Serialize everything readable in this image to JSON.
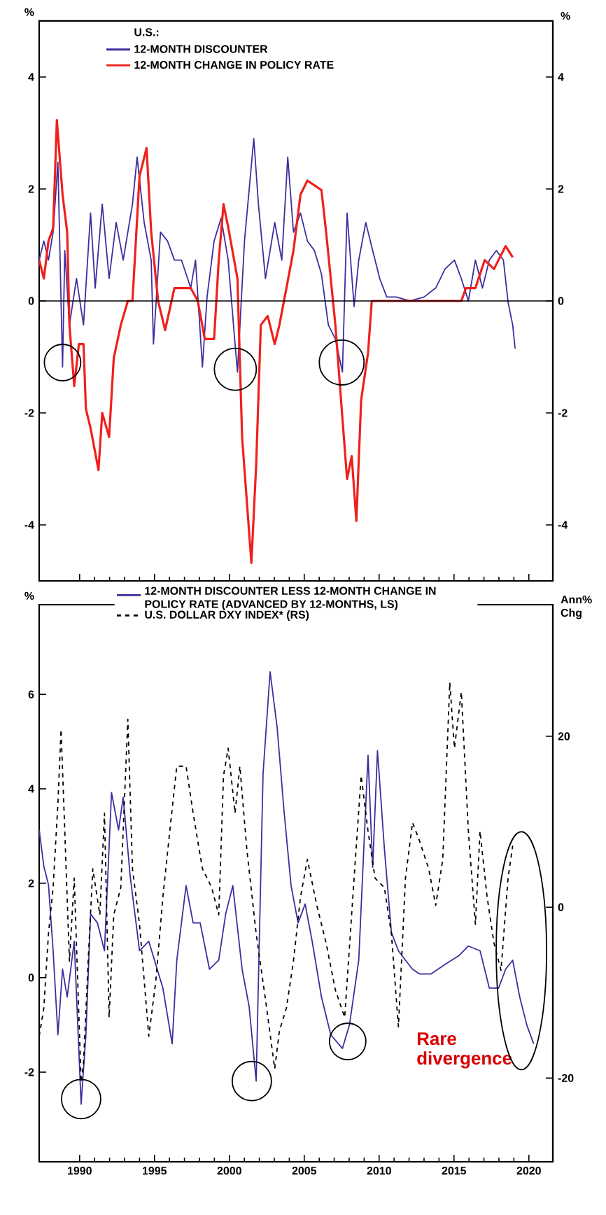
{
  "chart_data": [
    {
      "type": "line",
      "ylabel": "%",
      "y2label": "%",
      "legend_title": "U.S.:",
      "legend": "top",
      "marker": "none",
      "grid": false,
      "tick_labels": "y",
      "xlim": [
        1987.3,
        2021.6
      ],
      "xticks": [
        {
          "value": 1990,
          "label": null
        },
        {
          "value": 1995,
          "label": null
        },
        {
          "value": 2000,
          "label": null
        },
        {
          "value": 2005,
          "label": null
        },
        {
          "value": 2010,
          "label": null
        },
        {
          "value": 2015,
          "label": null
        },
        {
          "value": 2020,
          "label": null
        }
      ],
      "ylim": [
        -5,
        5
      ],
      "yticks": [
        -4,
        -2,
        0,
        2,
        4
      ],
      "y2lim": [
        -5,
        5
      ],
      "y2ticks": [
        -4,
        -2,
        0,
        2,
        4
      ],
      "ref_lines": [
        {
          "axis": "y",
          "value": 0,
          "color": "#000000"
        }
      ],
      "series": [
        {
          "name": "12-MONTH DISCOUNTER",
          "color": "#3b2f9e",
          "line_style": "solid",
          "x": [
            1987.3,
            1987.61,
            1987.92,
            1988.23,
            1988.55,
            1988.86,
            1989.01,
            1989.32,
            1989.79,
            1990.26,
            1990.73,
            1991.04,
            1991.51,
            1991.97,
            1992.44,
            1992.91,
            1993.53,
            1993.84,
            1994.31,
            1994.78,
            1994.93,
            1995.4,
            1995.87,
            1996.33,
            1996.8,
            1997.42,
            1997.74,
            1998.2,
            1998.51,
            1998.98,
            1999.45,
            1999.92,
            2000.38,
            2000.54,
            2001.01,
            2001.63,
            2001.94,
            2002.41,
            2003.03,
            2003.5,
            2003.9,
            2004.28,
            2004.75,
            2005.21,
            2005.68,
            2006.15,
            2006.61,
            2007.08,
            2007.55,
            2007.86,
            2008.33,
            2008.64,
            2009.11,
            2009.57,
            2010.04,
            2010.51,
            2011.13,
            2012.07,
            2013.0,
            2013.78,
            2014.4,
            2015.03,
            2015.49,
            2015.96,
            2016.43,
            2016.9,
            2017.36,
            2017.83,
            2018.3,
            2018.61,
            2018.92,
            2019.08
          ],
          "values": [
            0.73,
            1.07,
            0.73,
            1.23,
            2.48,
            -1.18,
            0.9,
            -0.43,
            0.4,
            -0.43,
            1.57,
            0.23,
            1.73,
            0.4,
            1.4,
            0.73,
            1.73,
            2.57,
            1.4,
            0.73,
            -0.77,
            1.23,
            1.07,
            0.73,
            0.73,
            0.23,
            0.73,
            -1.18,
            0.07,
            1.07,
            1.48,
            0.73,
            -0.77,
            -1.27,
            1.07,
            2.9,
            1.73,
            0.4,
            1.4,
            0.73,
            2.57,
            1.23,
            1.57,
            1.07,
            0.9,
            0.48,
            -0.43,
            -0.68,
            -1.27,
            1.57,
            -0.1,
            0.73,
            1.4,
            0.9,
            0.4,
            0.07,
            0.07,
            0,
            0.07,
            0.23,
            0.57,
            0.73,
            0.4,
            0,
            0.73,
            0.23,
            0.73,
            0.9,
            0.73,
            -0.02,
            -0.43,
            -0.85
          ]
        },
        {
          "name": "12-MONTH CHANGE IN POLICY RATE",
          "color": "#f0201c",
          "line_style": "solid",
          "x": [
            1987.3,
            1987.61,
            1987.92,
            1988.23,
            1988.48,
            1988.86,
            1989.17,
            1989.32,
            1989.64,
            1989.95,
            1990.26,
            1990.42,
            1990.73,
            1991.26,
            1991.51,
            1991.97,
            1992.28,
            1992.75,
            1993.22,
            1993.53,
            1994.0,
            1994.47,
            1994.78,
            1995.24,
            1995.71,
            1996.33,
            1997.42,
            1997.89,
            1998.36,
            1998.98,
            1999.29,
            1999.61,
            1999.92,
            2000.54,
            2000.85,
            2001.47,
            2001.79,
            2002.1,
            2002.56,
            2003.03,
            2003.34,
            2003.81,
            2004.28,
            2004.75,
            2005.21,
            2006.15,
            2006.46,
            2007.08,
            2007.55,
            2007.86,
            2008.17,
            2008.48,
            2008.8,
            2009.26,
            2009.51,
            2015.49,
            2015.8,
            2016.43,
            2017.05,
            2017.67,
            2018.45,
            2018.92
          ],
          "values": [
            0.73,
            0.4,
            1.07,
            1.3,
            3.23,
            1.9,
            1.23,
            -0.43,
            -1.52,
            -0.77,
            -0.77,
            -1.93,
            -2.27,
            -3.02,
            -2.0,
            -2.43,
            -1.02,
            -0.43,
            0,
            0,
            2.23,
            2.73,
            1.23,
            0,
            -0.52,
            0.23,
            0.23,
            0,
            -0.68,
            -0.68,
            0.73,
            1.73,
            1.32,
            0.4,
            -2.43,
            -4.68,
            -2.93,
            -0.43,
            -0.27,
            -0.77,
            -0.43,
            0.23,
            0.9,
            1.9,
            2.15,
            1.98,
            1.23,
            -0.43,
            -2.1,
            -3.18,
            -2.77,
            -3.93,
            -1.77,
            -0.93,
            0,
            0,
            0.23,
            0.23,
            0.73,
            0.57,
            0.98,
            0.78
          ]
        }
      ]
    },
    {
      "type": "line",
      "ylabel": "%",
      "y2label": "Ann% Chg",
      "legend": "top",
      "marker": "none",
      "grid": false,
      "xlim": [
        1987.3,
        2021.6
      ],
      "xticks": [
        1990,
        1995,
        2000,
        2005,
        2010,
        2015,
        2020
      ],
      "ylim": [
        -3.9,
        7.9
      ],
      "yticks": [
        -2,
        0,
        2,
        4,
        6
      ],
      "y2lim": [
        -29.8,
        35.4
      ],
      "y2ticks": [
        -20,
        0,
        20
      ],
      "annotations": [
        "Rare divergence"
      ],
      "series": [
        {
          "name": "12-MONTH DISCOUNTER LESS 12-MONTH CHANGE IN POLICY RATE (ADVANCED BY 12-MONTHS, LS)",
          "color": "#3b2f9e",
          "line_style": "solid",
          "x": [
            1987.3,
            1987.61,
            1987.92,
            1988.23,
            1988.55,
            1988.86,
            1989.17,
            1989.64,
            1990.1,
            1990.42,
            1990.73,
            1991.19,
            1991.66,
            1992.13,
            1992.6,
            1992.91,
            1993.38,
            1994.0,
            1994.62,
            1995.56,
            1996.18,
            1996.49,
            1997.11,
            1997.58,
            1998.05,
            1998.67,
            1999.29,
            1999.76,
            2000.23,
            2000.85,
            2001.32,
            2001.79,
            2002.25,
            2002.72,
            2003.19,
            2003.65,
            2004.12,
            2004.59,
            2005.06,
            2005.53,
            2006.15,
            2006.77,
            2007.55,
            2008.02,
            2008.64,
            2009.26,
            2009.57,
            2009.89,
            2010.35,
            2010.82,
            2011.29,
            2011.76,
            2012.23,
            2012.69,
            2013.47,
            2014.4,
            2015.34,
            2015.96,
            2016.74,
            2017.36,
            2017.98,
            2018.45,
            2018.92,
            2019.39,
            2019.86,
            2020.32
          ],
          "values": [
            3.13,
            2.36,
            1.97,
            0.57,
            -1.21,
            0.18,
            -0.41,
            0.77,
            -2.68,
            -1.21,
            1.35,
            1.16,
            0.57,
            3.92,
            3.13,
            3.82,
            2.14,
            0.57,
            0.77,
            -0.22,
            -1.4,
            0.37,
            1.95,
            1.16,
            1.16,
            0.18,
            0.37,
            1.36,
            1.95,
            0.18,
            -0.61,
            -2.19,
            4.32,
            6.48,
            5.3,
            3.53,
            1.95,
            1.16,
            1.56,
            0.77,
            -0.41,
            -1.21,
            -1.5,
            -1.0,
            0.37,
            4.71,
            2.34,
            4.81,
            2.74,
            0.96,
            0.57,
            0.37,
            0.18,
            0.08,
            0.08,
            0.28,
            0.47,
            0.67,
            0.57,
            -0.22,
            -0.22,
            0.18,
            0.37,
            -0.41,
            -1.0,
            -1.4
          ]
        },
        {
          "name": "U.S. DOLLAR DXY INDEX* (RS)",
          "color": "#000000",
          "line_style": "dashed",
          "axis": "y2",
          "x": [
            1987.3,
            1987.61,
            1987.92,
            1988.23,
            1988.55,
            1988.76,
            1989.01,
            1989.32,
            1989.64,
            1990.1,
            1990.26,
            1990.57,
            1990.88,
            1991.35,
            1991.66,
            1991.97,
            1992.28,
            1992.75,
            1993.22,
            1993.53,
            1994.0,
            1994.62,
            1995.09,
            1995.56,
            1996.02,
            1996.49,
            1997.11,
            1997.58,
            1998.2,
            1998.82,
            1999.29,
            1999.61,
            1999.92,
            2000.38,
            2000.7,
            2001.17,
            2001.79,
            2002.41,
            2003.03,
            2003.34,
            2003.81,
            2004.28,
            2004.75,
            2005.21,
            2005.84,
            2006.46,
            2007.08,
            2007.7,
            2008.33,
            2008.8,
            2009.26,
            2009.73,
            2010.35,
            2010.82,
            2011.29,
            2011.76,
            2012.23,
            2012.69,
            2013.31,
            2013.78,
            2014.25,
            2014.72,
            2015.03,
            2015.49,
            2015.96,
            2016.43,
            2016.74,
            2017.21,
            2017.67,
            2018.14,
            2018.61,
            2018.92
          ],
          "values": [
            -15.1,
            -11.8,
            -3.1,
            2.3,
            12.1,
            20.8,
            8.9,
            -6.3,
            3.4,
            -20.5,
            -18.3,
            -6.3,
            4.5,
            -0.9,
            11.0,
            -12.9,
            -0.9,
            2.3,
            22.0,
            4.5,
            -2.0,
            -15.1,
            -8.6,
            1.2,
            8.9,
            16.5,
            16.5,
            11.0,
            4.5,
            2.3,
            -0.9,
            15.4,
            18.6,
            11.0,
            16.5,
            6.7,
            -3.1,
            -10.8,
            -18.9,
            -14.5,
            -11.8,
            -6.3,
            1.2,
            5.6,
            0.2,
            -4.2,
            -9.7,
            -12.9,
            3.4,
            15.4,
            8.9,
            3.4,
            2.3,
            -3.1,
            -14.0,
            3.4,
            9.9,
            7.8,
            4.5,
            0.2,
            5.6,
            26.3,
            18.6,
            25.2,
            8.9,
            -2.0,
            8.9,
            1.2,
            -4.2,
            -7.4,
            3.4,
            7.2
          ]
        }
      ]
    }
  ]
}
